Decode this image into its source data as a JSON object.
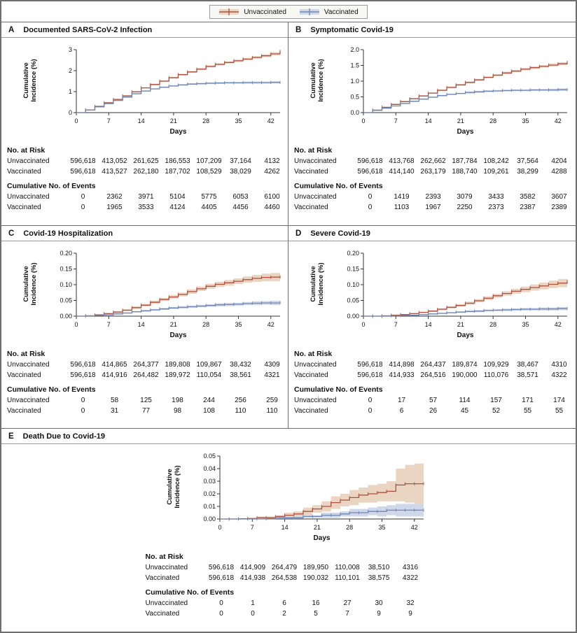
{
  "legend": {
    "items": [
      {
        "label": "Unvaccinated",
        "color": "#ad5240",
        "band": "#e9d5c2"
      },
      {
        "label": "Vaccinated",
        "color": "#6f87b5",
        "band": "#cfd7e8"
      }
    ]
  },
  "axis": {
    "xlabel": "Days",
    "xticks": [
      0,
      7,
      14,
      21,
      28,
      35,
      42
    ],
    "ylabel": "Cumulative Incidence (%)"
  },
  "tables": {
    "at_risk_heading": "No. at Risk",
    "events_heading": "Cumulative No. of Events",
    "row_labels": [
      "Unvaccinated",
      "Vaccinated"
    ]
  },
  "chart_data": [
    {
      "type": "line",
      "letter": "A",
      "title": "Documented SARS-CoV-2 Infection",
      "ylim": [
        0,
        3
      ],
      "yticks": [
        0,
        1,
        2,
        3
      ],
      "ytick_labels": [
        "0",
        "1",
        "2",
        "3"
      ],
      "x": [
        0,
        2,
        4,
        6,
        8,
        10,
        12,
        14,
        16,
        18,
        20,
        22,
        24,
        26,
        28,
        30,
        32,
        34,
        36,
        38,
        40,
        42,
        44
      ],
      "series": [
        {
          "name": "Unvaccinated",
          "y": [
            0,
            0.13,
            0.3,
            0.47,
            0.63,
            0.8,
            0.99,
            1.18,
            1.34,
            1.5,
            1.66,
            1.81,
            1.94,
            2.07,
            2.2,
            2.3,
            2.39,
            2.47,
            2.55,
            2.63,
            2.71,
            2.8,
            2.92
          ],
          "band": [
            0,
            0.02,
            0.02,
            0.02,
            0.03,
            0.03,
            0.03,
            0.03,
            0.04,
            0.04,
            0.04,
            0.04,
            0.04,
            0.05,
            0.05,
            0.05,
            0.05,
            0.06,
            0.06,
            0.06,
            0.07,
            0.08,
            0.08
          ]
        },
        {
          "name": "Vaccinated",
          "y": [
            0,
            0.12,
            0.27,
            0.43,
            0.58,
            0.74,
            0.9,
            1.03,
            1.13,
            1.21,
            1.27,
            1.32,
            1.36,
            1.38,
            1.4,
            1.41,
            1.42,
            1.42,
            1.43,
            1.43,
            1.43,
            1.44,
            1.44
          ],
          "band": [
            0,
            0.02,
            0.02,
            0.02,
            0.02,
            0.03,
            0.03,
            0.03,
            0.03,
            0.03,
            0.03,
            0.04,
            0.04,
            0.04,
            0.04,
            0.04,
            0.04,
            0.04,
            0.05,
            0.05,
            0.05,
            0.05,
            0.05
          ]
        }
      ],
      "at_risk": [
        [
          "596,618",
          "413,052",
          "261,625",
          "186,553",
          "107,209",
          "37,164",
          "4132"
        ],
        [
          "596,618",
          "413,527",
          "262,180",
          "187,702",
          "108,529",
          "38,029",
          "4262"
        ]
      ],
      "events": [
        [
          "0",
          "2362",
          "3971",
          "5104",
          "5775",
          "6053",
          "6100"
        ],
        [
          "0",
          "1965",
          "3533",
          "4124",
          "4405",
          "4456",
          "4460"
        ]
      ]
    },
    {
      "type": "line",
      "letter": "B",
      "title": "Symptomatic Covid-19",
      "ylim": [
        0,
        2
      ],
      "yticks": [
        0,
        0.5,
        1.0,
        1.5,
        2.0
      ],
      "ytick_labels": [
        "0.0",
        "0.5",
        "1.0",
        "1.5",
        "2.0"
      ],
      "x": [
        0,
        2,
        4,
        6,
        8,
        10,
        12,
        14,
        16,
        18,
        20,
        22,
        24,
        26,
        28,
        30,
        32,
        34,
        36,
        38,
        40,
        42,
        44
      ],
      "series": [
        {
          "name": "Unvaccinated",
          "y": [
            0,
            0.08,
            0.17,
            0.26,
            0.35,
            0.44,
            0.53,
            0.62,
            0.71,
            0.8,
            0.88,
            0.96,
            1.04,
            1.12,
            1.19,
            1.26,
            1.32,
            1.38,
            1.43,
            1.47,
            1.51,
            1.55,
            1.6
          ],
          "band": [
            0,
            0.01,
            0.01,
            0.02,
            0.02,
            0.02,
            0.02,
            0.02,
            0.03,
            0.03,
            0.03,
            0.03,
            0.03,
            0.03,
            0.03,
            0.04,
            0.04,
            0.04,
            0.04,
            0.04,
            0.05,
            0.05,
            0.07
          ]
        },
        {
          "name": "Vaccinated",
          "y": [
            0,
            0.07,
            0.14,
            0.21,
            0.29,
            0.36,
            0.43,
            0.49,
            0.54,
            0.58,
            0.61,
            0.64,
            0.66,
            0.68,
            0.69,
            0.7,
            0.71,
            0.71,
            0.72,
            0.72,
            0.72,
            0.73,
            0.73
          ],
          "band": [
            0,
            0.01,
            0.01,
            0.01,
            0.02,
            0.02,
            0.02,
            0.02,
            0.02,
            0.02,
            0.02,
            0.03,
            0.03,
            0.03,
            0.03,
            0.03,
            0.03,
            0.03,
            0.03,
            0.03,
            0.04,
            0.04,
            0.04
          ]
        }
      ],
      "at_risk": [
        [
          "596,618",
          "413,768",
          "262,662",
          "187,784",
          "108,242",
          "37,564",
          "4204"
        ],
        [
          "596,618",
          "414,140",
          "263,179",
          "188,740",
          "109,261",
          "38,299",
          "4288"
        ]
      ],
      "events": [
        [
          "0",
          "1419",
          "2393",
          "3079",
          "3433",
          "3582",
          "3607"
        ],
        [
          "0",
          "1103",
          "1967",
          "2250",
          "2373",
          "2387",
          "2389"
        ]
      ]
    },
    {
      "type": "line",
      "letter": "C",
      "title": "Covid-19 Hospitalization",
      "ylim": [
        0,
        0.2
      ],
      "yticks": [
        0,
        0.05,
        0.1,
        0.15,
        0.2
      ],
      "ytick_labels": [
        "0.00",
        "0.05",
        "0.10",
        "0.15",
        "0.20"
      ],
      "x": [
        0,
        2,
        4,
        6,
        8,
        10,
        12,
        14,
        16,
        18,
        20,
        22,
        24,
        26,
        28,
        30,
        32,
        34,
        36,
        38,
        40,
        42,
        44
      ],
      "series": [
        {
          "name": "Unvaccinated",
          "y": [
            0,
            0.001,
            0.004,
            0.008,
            0.013,
            0.019,
            0.027,
            0.035,
            0.044,
            0.053,
            0.061,
            0.069,
            0.078,
            0.087,
            0.095,
            0.101,
            0.106,
            0.111,
            0.116,
            0.12,
            0.123,
            0.124,
            0.125
          ],
          "band": [
            0,
            0.001,
            0.002,
            0.002,
            0.003,
            0.003,
            0.004,
            0.004,
            0.005,
            0.005,
            0.006,
            0.006,
            0.007,
            0.007,
            0.008,
            0.008,
            0.009,
            0.009,
            0.01,
            0.011,
            0.012,
            0.013,
            0.014
          ]
        },
        {
          "name": "Vaccinated",
          "y": [
            0,
            0.001,
            0.002,
            0.004,
            0.007,
            0.01,
            0.014,
            0.017,
            0.02,
            0.023,
            0.026,
            0.028,
            0.03,
            0.032,
            0.034,
            0.036,
            0.037,
            0.038,
            0.04,
            0.041,
            0.042,
            0.042,
            0.043
          ],
          "band": [
            0,
            0.001,
            0.001,
            0.001,
            0.002,
            0.002,
            0.002,
            0.003,
            0.003,
            0.003,
            0.003,
            0.004,
            0.004,
            0.004,
            0.004,
            0.005,
            0.005,
            0.005,
            0.005,
            0.006,
            0.006,
            0.007,
            0.007
          ]
        }
      ],
      "at_risk": [
        [
          "596,618",
          "414,865",
          "264,377",
          "189,808",
          "109,867",
          "38,432",
          "4309"
        ],
        [
          "596,618",
          "414,916",
          "264,482",
          "189,972",
          "110,054",
          "38,561",
          "4321"
        ]
      ],
      "events": [
        [
          "0",
          "58",
          "125",
          "198",
          "244",
          "256",
          "259"
        ],
        [
          "0",
          "31",
          "77",
          "98",
          "108",
          "110",
          "110"
        ]
      ]
    },
    {
      "type": "line",
      "letter": "D",
      "title": "Severe Covid-19",
      "ylim": [
        0,
        0.2
      ],
      "yticks": [
        0,
        0.05,
        0.1,
        0.15,
        0.2
      ],
      "ytick_labels": [
        "0.00",
        "0.05",
        "0.10",
        "0.15",
        "0.20"
      ],
      "x": [
        0,
        2,
        4,
        6,
        8,
        10,
        12,
        14,
        16,
        18,
        20,
        22,
        24,
        26,
        28,
        30,
        32,
        34,
        36,
        38,
        40,
        42,
        44
      ],
      "series": [
        {
          "name": "Unvaccinated",
          "y": [
            0,
            0.0,
            0.001,
            0.003,
            0.005,
            0.008,
            0.012,
            0.016,
            0.022,
            0.028,
            0.034,
            0.041,
            0.049,
            0.057,
            0.065,
            0.072,
            0.079,
            0.085,
            0.091,
            0.096,
            0.101,
            0.105,
            0.111
          ],
          "band": [
            0,
            0.0,
            0.001,
            0.001,
            0.001,
            0.002,
            0.002,
            0.003,
            0.003,
            0.004,
            0.004,
            0.005,
            0.005,
            0.006,
            0.006,
            0.007,
            0.008,
            0.009,
            0.01,
            0.011,
            0.012,
            0.013,
            0.015
          ]
        },
        {
          "name": "Vaccinated",
          "y": [
            0,
            0.0,
            0.0,
            0.001,
            0.002,
            0.003,
            0.005,
            0.007,
            0.009,
            0.011,
            0.013,
            0.015,
            0.016,
            0.018,
            0.019,
            0.02,
            0.021,
            0.022,
            0.022,
            0.023,
            0.023,
            0.024,
            0.024
          ],
          "band": [
            0,
            0.0,
            0.0,
            0.001,
            0.001,
            0.001,
            0.001,
            0.002,
            0.002,
            0.002,
            0.002,
            0.003,
            0.003,
            0.003,
            0.003,
            0.004,
            0.004,
            0.004,
            0.004,
            0.005,
            0.005,
            0.005,
            0.006
          ]
        }
      ],
      "at_risk": [
        [
          "596,618",
          "414,898",
          "264,437",
          "189,874",
          "109,929",
          "38,467",
          "4310"
        ],
        [
          "596,618",
          "414,933",
          "264,516",
          "190,000",
          "110,076",
          "38,571",
          "4322"
        ]
      ],
      "events": [
        [
          "0",
          "17",
          "57",
          "114",
          "157",
          "171",
          "174"
        ],
        [
          "0",
          "6",
          "26",
          "45",
          "52",
          "55",
          "55"
        ]
      ]
    },
    {
      "type": "line",
      "letter": "E",
      "title": "Death Due to Covid-19",
      "ylim": [
        0,
        0.05
      ],
      "yticks": [
        0,
        0.01,
        0.02,
        0.03,
        0.04,
        0.05
      ],
      "ytick_labels": [
        "0.00",
        "0.01",
        "0.02",
        "0.03",
        "0.04",
        "0.05"
      ],
      "x": [
        0,
        2,
        4,
        6,
        8,
        10,
        12,
        14,
        16,
        18,
        20,
        22,
        24,
        26,
        28,
        30,
        32,
        34,
        36,
        38,
        40,
        42,
        44
      ],
      "series": [
        {
          "name": "Unvaccinated",
          "y": [
            0,
            0,
            0.0002,
            0.0004,
            0.001,
            0.001,
            0.002,
            0.003,
            0.004,
            0.006,
            0.008,
            0.01,
            0.013,
            0.015,
            0.017,
            0.019,
            0.02,
            0.021,
            0.022,
            0.027,
            0.028,
            0.028,
            0.028
          ],
          "band": [
            0,
            0,
            0.0002,
            0.0004,
            0.001,
            0.001,
            0.001,
            0.002,
            0.002,
            0.003,
            0.003,
            0.004,
            0.005,
            0.005,
            0.006,
            0.006,
            0.007,
            0.007,
            0.008,
            0.013,
            0.015,
            0.016,
            0.017
          ]
        },
        {
          "name": "Vaccinated",
          "y": [
            0,
            0,
            0,
            0,
            0,
            0.0002,
            0.001,
            0.001,
            0.001,
            0.002,
            0.002,
            0.003,
            0.003,
            0.004,
            0.005,
            0.005,
            0.006,
            0.006,
            0.007,
            0.007,
            0.007,
            0.007,
            0.007
          ],
          "band": [
            0,
            0,
            0,
            0,
            0,
            0.0002,
            0.0005,
            0.001,
            0.001,
            0.001,
            0.001,
            0.002,
            0.002,
            0.002,
            0.003,
            0.003,
            0.003,
            0.004,
            0.004,
            0.005,
            0.005,
            0.005,
            0.005
          ]
        }
      ],
      "at_risk": [
        [
          "596,618",
          "414,909",
          "264,479",
          "189,950",
          "110,008",
          "38,510",
          "4316"
        ],
        [
          "596,618",
          "414,938",
          "264,538",
          "190,032",
          "110,101",
          "38,575",
          "4322"
        ]
      ],
      "events": [
        [
          "0",
          "1",
          "6",
          "16",
          "27",
          "30",
          "32"
        ],
        [
          "0",
          "0",
          "2",
          "5",
          "7",
          "9",
          "9"
        ]
      ]
    }
  ]
}
